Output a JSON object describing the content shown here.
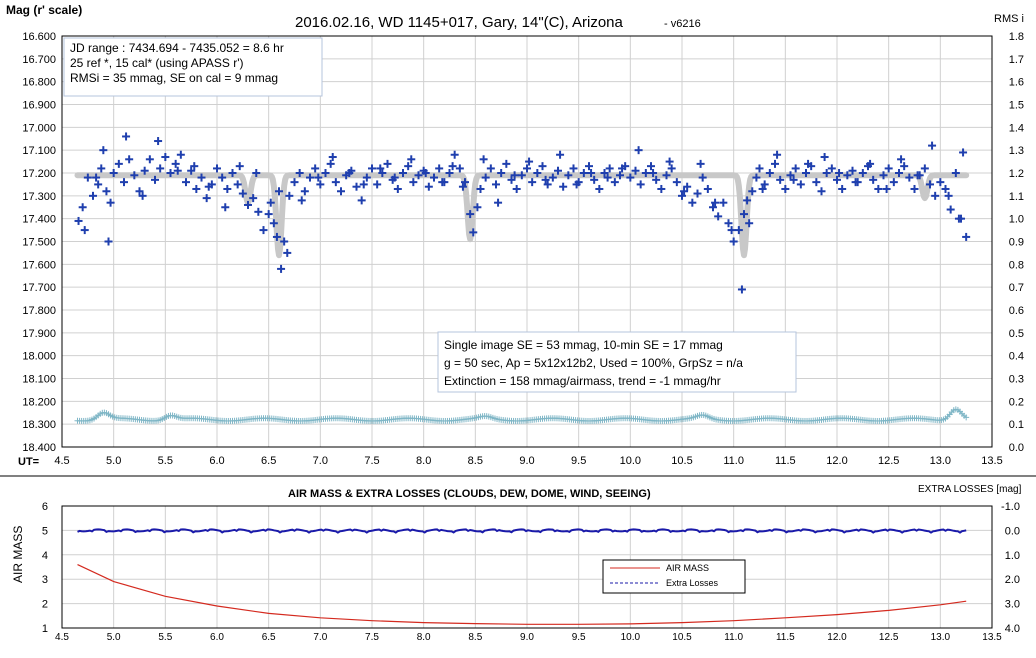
{
  "colors": {
    "main_points": "#1f3fae",
    "model": "#c8c8c8",
    "rms": "#7fb6c6",
    "airmass": "#d42a1f",
    "extra_losses": "#1a1aaa",
    "grid": "#d0d0d0"
  },
  "chart_data": [
    {
      "type": "scatter",
      "title": "2016.02.16, WD 1145+017, Gary, 14\"(C), Arizona",
      "title_version": "- v6216",
      "ylabel": "Mag (r' scale)",
      "y2label": "RMS i",
      "xlabel": "UT=",
      "xlim": [
        4.5,
        13.5
      ],
      "ylim": [
        18.4,
        16.6
      ],
      "y2lim": [
        0.0,
        1.8
      ],
      "y_ticks": [
        "16.600",
        "16.700",
        "16.800",
        "16.900",
        "17.000",
        "17.100",
        "17.200",
        "17.300",
        "17.400",
        "17.500",
        "17.600",
        "17.700",
        "17.800",
        "17.900",
        "18.000",
        "18.100",
        "18.200",
        "18.300",
        "18.400"
      ],
      "y2_ticks": [
        "1.8",
        "1.7",
        "1.6",
        "1.5",
        "1.4",
        "1.3",
        "1.2",
        "1.1",
        "1.0",
        "0.9",
        "0.8",
        "0.7",
        "0.6",
        "0.5",
        "0.4",
        "0.3",
        "0.2",
        "0.1",
        "0.0"
      ],
      "x_ticks": [
        "4.5",
        "5.0",
        "5.5",
        "6.0",
        "6.5",
        "7.0",
        "7.5",
        "8.0",
        "8.5",
        "9.0",
        "9.5",
        "10.0",
        "10.5",
        "11.0",
        "11.5",
        "12.0",
        "12.5",
        "13.0",
        "13.5"
      ],
      "grid": true,
      "info_box_top": [
        "JD range  : 7434.694 - 7435.052  = 8.6 hr",
        " 25 ref *, 15 cal* (using APASS r')",
        "RMSi = 35 mmag, SE on cal = 9 mmag"
      ],
      "info_box_bottom": [
        "Single image SE = 53 mmag, 10-min SE = 17 mmag",
        "g = 50 sec, Ap = 5x12x12b2, Used = 100%, GrpSz = n/a",
        "Extinction = 158 mmag/airmass, trend = -1 mmag/hr"
      ],
      "series": [
        {
          "marker": "+",
          "x": [
            4.66,
            4.7,
            4.75,
            4.8,
            4.85,
            4.88,
            4.93,
            4.97,
            5.0,
            5.05,
            5.1,
            5.15,
            5.2,
            5.25,
            5.3,
            5.35,
            5.4,
            5.45,
            5.5,
            5.55,
            5.6,
            5.65,
            5.7,
            5.75,
            5.8,
            5.85,
            5.9,
            5.95,
            6.0,
            6.05,
            6.1,
            6.15,
            6.2,
            6.25,
            6.3,
            6.35,
            6.4,
            6.45,
            6.5,
            6.55,
            6.58,
            6.62,
            6.65,
            6.7,
            6.75,
            6.8,
            6.85,
            6.9,
            6.95,
            7.0,
            7.05,
            7.1,
            7.15,
            7.2,
            7.25,
            7.3,
            7.35,
            7.4,
            7.45,
            7.5,
            7.55,
            7.6,
            7.65,
            7.7,
            7.75,
            7.8,
            7.85,
            7.9,
            7.95,
            8.0,
            8.05,
            8.1,
            8.15,
            8.2,
            8.25,
            8.3,
            8.35,
            8.4,
            8.45,
            8.48,
            8.52,
            8.55,
            8.6,
            8.65,
            8.7,
            8.75,
            8.8,
            8.85,
            8.9,
            8.95,
            9.0,
            9.05,
            9.1,
            9.15,
            9.2,
            9.25,
            9.3,
            9.35,
            9.4,
            9.45,
            9.5,
            9.55,
            9.6,
            9.65,
            9.7,
            9.75,
            9.8,
            9.85,
            9.9,
            9.95,
            10.0,
            10.05,
            10.1,
            10.15,
            10.2,
            10.25,
            10.3,
            10.35,
            10.4,
            10.45,
            10.5,
            10.55,
            10.6,
            10.65,
            10.7,
            10.75,
            10.8,
            10.85,
            10.9,
            10.95,
            11.0,
            11.05,
            11.1,
            11.13,
            11.18,
            11.22,
            11.25,
            11.3,
            11.35,
            11.4,
            11.45,
            11.5,
            11.55,
            11.6,
            11.65,
            11.7,
            11.75,
            11.8,
            11.85,
            11.9,
            11.95,
            12.0,
            12.05,
            12.1,
            12.15,
            12.2,
            12.25,
            12.3,
            12.35,
            12.4,
            12.45,
            12.5,
            12.55,
            12.6,
            12.65,
            12.7,
            12.75,
            12.8,
            12.85,
            12.9,
            12.95,
            13.0,
            13.05,
            13.1,
            13.15,
            13.2,
            13.25,
            4.72,
            4.83,
            4.9,
            4.95,
            5.12,
            5.28,
            5.43,
            5.62,
            5.78,
            5.92,
            6.08,
            6.22,
            6.38,
            6.52,
            6.6,
            6.68,
            6.82,
            6.98,
            7.12,
            7.28,
            7.42,
            7.58,
            7.72,
            7.88,
            8.02,
            8.18,
            8.28,
            8.38,
            8.58,
            8.72,
            8.88,
            9.02,
            9.18,
            9.32,
            9.48,
            9.62,
            9.78,
            9.92,
            10.08,
            10.22,
            10.38,
            10.52,
            10.68,
            10.82,
            10.98,
            11.08,
            11.15,
            11.28,
            11.42,
            11.58,
            11.72,
            11.88,
            12.02,
            12.18,
            12.32,
            12.48,
            12.62,
            12.78,
            12.92,
            13.08,
            13.18,
            13.22
          ],
          "y": [
            17.41,
            17.35,
            17.22,
            17.3,
            17.25,
            17.18,
            17.28,
            17.33,
            17.2,
            17.16,
            17.24,
            17.14,
            17.21,
            17.28,
            17.19,
            17.14,
            17.23,
            17.18,
            17.13,
            17.2,
            17.16,
            17.12,
            17.24,
            17.19,
            17.27,
            17.22,
            17.31,
            17.25,
            17.18,
            17.22,
            17.27,
            17.2,
            17.25,
            17.29,
            17.34,
            17.31,
            17.37,
            17.45,
            17.38,
            17.42,
            17.48,
            17.62,
            17.5,
            17.3,
            17.24,
            17.2,
            17.28,
            17.22,
            17.18,
            17.25,
            17.2,
            17.16,
            17.24,
            17.28,
            17.21,
            17.19,
            17.26,
            17.32,
            17.22,
            17.18,
            17.25,
            17.2,
            17.16,
            17.23,
            17.27,
            17.2,
            17.17,
            17.24,
            17.21,
            17.19,
            17.26,
            17.22,
            17.18,
            17.24,
            17.2,
            17.12,
            17.18,
            17.24,
            17.38,
            17.46,
            17.35,
            17.27,
            17.22,
            17.18,
            17.25,
            17.2,
            17.16,
            17.23,
            17.27,
            17.21,
            17.18,
            17.24,
            17.2,
            17.17,
            17.25,
            17.22,
            17.19,
            17.26,
            17.21,
            17.18,
            17.24,
            17.2,
            17.17,
            17.23,
            17.27,
            17.2,
            17.18,
            17.24,
            17.21,
            17.17,
            17.22,
            17.19,
            17.25,
            17.2,
            17.17,
            17.23,
            17.27,
            17.21,
            17.18,
            17.24,
            17.3,
            17.26,
            17.33,
            17.29,
            17.22,
            17.27,
            17.35,
            17.39,
            17.33,
            17.42,
            17.5,
            17.45,
            17.38,
            17.32,
            17.28,
            17.22,
            17.18,
            17.25,
            17.2,
            17.16,
            17.23,
            17.27,
            17.21,
            17.18,
            17.25,
            17.2,
            17.17,
            17.24,
            17.28,
            17.2,
            17.18,
            17.23,
            17.27,
            17.21,
            17.19,
            17.24,
            17.2,
            17.17,
            17.23,
            17.27,
            17.21,
            17.18,
            17.24,
            17.2,
            17.17,
            17.22,
            17.27,
            17.21,
            17.18,
            17.25,
            17.3,
            17.24,
            17.27,
            17.36,
            17.2,
            17.4,
            17.48,
            17.45,
            17.22,
            17.1,
            17.5,
            17.04,
            17.3,
            17.06,
            17.19,
            17.17,
            17.26,
            17.35,
            17.17,
            17.2,
            17.33,
            17.28,
            17.55,
            17.32,
            17.22,
            17.13,
            17.2,
            17.25,
            17.18,
            17.22,
            17.14,
            17.2,
            17.24,
            17.17,
            17.26,
            17.14,
            17.33,
            17.21,
            17.15,
            17.23,
            17.12,
            17.25,
            17.2,
            17.22,
            17.18,
            17.1,
            17.2,
            17.15,
            17.28,
            17.16,
            17.33,
            17.45,
            17.71,
            17.42,
            17.27,
            17.12,
            17.23,
            17.16,
            17.13,
            17.2,
            17.24,
            17.16,
            17.27,
            17.14,
            17.21,
            17.08,
            17.3,
            17.4,
            17.11
          ]
        },
        {
          "name_hidden": "model",
          "note_hidden": "",
          "x": [
            4.65,
            13.25
          ],
          "baseline": 17.21,
          "dips": [
            [
              6.3,
              0.12
            ],
            [
              6.6,
              0.35
            ],
            [
              8.45,
              0.28
            ],
            [
              11.1,
              0.35
            ],
            [
              12.85,
              0.1
            ]
          ]
        },
        {
          "axis": "y2",
          "marker": "+",
          "x_start": 4.65,
          "x_end": 13.25,
          "base_rms": 0.12,
          "bumps": [
            [
              4.9,
              0.03
            ],
            [
              5.55,
              0.02
            ],
            [
              8.6,
              0.01
            ],
            [
              10.7,
              0.015
            ],
            [
              13.15,
              0.05
            ]
          ]
        }
      ]
    },
    {
      "type": "line",
      "title": "AIR MASS & EXTRA LOSSES (CLOUDS, DEW, DOME, WIND, SEEING)",
      "ylabel": "AIR MASS",
      "y2label": "EXTRA LOSSES [mag]",
      "xlim": [
        4.5,
        13.5
      ],
      "ylim": [
        1,
        6
      ],
      "y2lim": [
        4.0,
        -1.0
      ],
      "x_ticks": [
        "4.5",
        "5.0",
        "5.5",
        "6.0",
        "6.5",
        "7.0",
        "7.5",
        "8.0",
        "8.5",
        "9.0",
        "9.5",
        "10.0",
        "10.5",
        "11.0",
        "11.5",
        "12.0",
        "12.5",
        "13.0",
        "13.5"
      ],
      "y_ticks": [
        "6",
        "5",
        "4",
        "3",
        "2",
        "1"
      ],
      "y2_ticks": [
        "-1.0",
        "0.0",
        "1.0",
        "2.0",
        "3.0",
        "4.0"
      ],
      "legend": [
        "AIR MASS",
        "Extra Losses"
      ],
      "legend_position": "center",
      "series": [
        {
          "name": "AIR MASS",
          "x": [
            4.65,
            5.0,
            5.5,
            6.0,
            6.5,
            7.0,
            7.5,
            8.0,
            8.5,
            9.0,
            9.5,
            10.0,
            10.5,
            11.0,
            11.5,
            12.0,
            12.5,
            13.0,
            13.25
          ],
          "y": [
            3.6,
            2.9,
            2.3,
            1.9,
            1.6,
            1.42,
            1.3,
            1.22,
            1.18,
            1.15,
            1.15,
            1.17,
            1.22,
            1.3,
            1.42,
            1.55,
            1.72,
            1.95,
            2.1
          ]
        },
        {
          "name": "Extra Losses",
          "axis": "y2",
          "x": [
            4.65,
            13.25
          ],
          "y": [
            0.0,
            0.0
          ]
        }
      ]
    }
  ]
}
